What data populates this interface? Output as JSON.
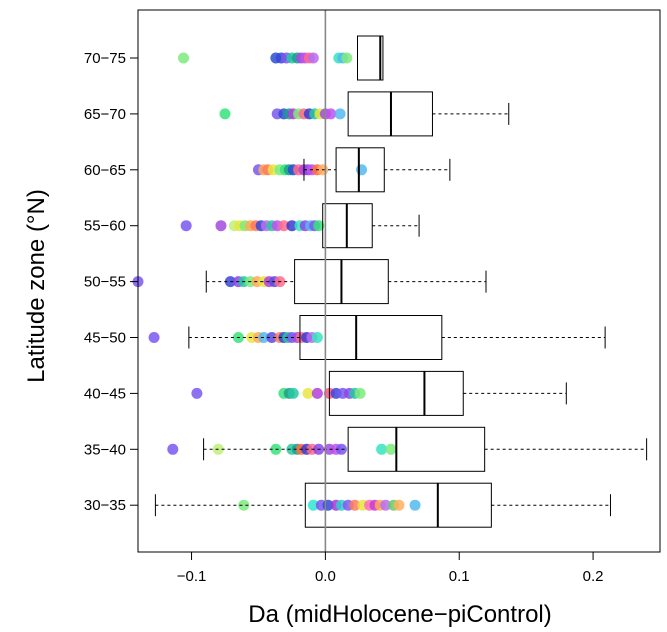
{
  "chart_data": {
    "type": "boxplot",
    "orientation": "horizontal",
    "xlabel": "Da (midHolocene−piControl)",
    "ylabel": "Latitude zone (°N)",
    "xlim": [
      -0.14,
      0.25
    ],
    "xticks": [
      -0.1,
      0.0,
      0.1,
      0.2
    ],
    "xtick_labels": [
      "−0.1",
      "0.0",
      "0.1",
      "0.2"
    ],
    "reference_line_x": 0,
    "categories": [
      "30−35",
      "35−40",
      "40−45",
      "45−50",
      "50−55",
      "55−60",
      "60−65",
      "65−70",
      "70−75"
    ],
    "boxes": [
      {
        "category": "30−35",
        "whisker_low": -0.127,
        "q1": -0.015,
        "median": 0.084,
        "q3": 0.124,
        "whisker_high": 0.213
      },
      {
        "category": "35−40",
        "whisker_low": -0.091,
        "q1": 0.017,
        "median": 0.053,
        "q3": 0.119,
        "whisker_high": 0.24
      },
      {
        "category": "40−45",
        "whisker_low": 0.003,
        "q1": 0.003,
        "median": 0.074,
        "q3": 0.103,
        "whisker_high": 0.18
      },
      {
        "category": "45−50",
        "whisker_low": -0.102,
        "q1": -0.019,
        "median": 0.023,
        "q3": 0.087,
        "whisker_high": 0.209
      },
      {
        "category": "50−55",
        "whisker_low": -0.089,
        "q1": -0.023,
        "median": 0.012,
        "q3": 0.047,
        "whisker_high": 0.12
      },
      {
        "category": "55−60",
        "whisker_low": -0.002,
        "q1": -0.002,
        "median": 0.016,
        "q3": 0.035,
        "whisker_high": 0.07
      },
      {
        "category": "60−65",
        "whisker_low": -0.016,
        "q1": 0.008,
        "median": 0.025,
        "q3": 0.044,
        "whisker_high": 0.093
      },
      {
        "category": "65−70",
        "whisker_low": 0.017,
        "q1": 0.017,
        "median": 0.049,
        "q3": 0.08,
        "whisker_high": 0.137
      },
      {
        "category": "70−75",
        "whisker_low": 0.024,
        "q1": 0.024,
        "median": 0.041,
        "q3": 0.043,
        "whisker_high": 0.043
      }
    ],
    "points": [
      {
        "category": "30−35",
        "x": [
          -0.061,
          -0.009,
          -0.003,
          0.002,
          0.008,
          0.012,
          0.017,
          0.022,
          0.028,
          0.033,
          0.037,
          0.041,
          0.045,
          0.051,
          0.055,
          0.067
        ],
        "colors": [
          "#7CEB7C",
          "#2EE8D0",
          "#7a57f0",
          "#2b4fcf",
          "#a23ad8",
          "#33cccc",
          "#7e5af2",
          "#ff7a5a",
          "#e6e640",
          "#ff6db8",
          "#c83cd0",
          "#ffaa55",
          "#b86cf0",
          "#66cc66",
          "#ffb060",
          "#54b8f0"
        ]
      },
      {
        "category": "35−40",
        "x": [
          -0.114,
          -0.08,
          -0.037,
          -0.025,
          -0.021,
          -0.018,
          -0.014,
          -0.01,
          -0.005,
          0.003,
          0.008,
          0.012,
          0.042,
          0.049
        ],
        "colors": [
          "#7a57f0",
          "#c0f07a",
          "#37e37a",
          "#27c7a0",
          "#1e9e8e",
          "#ff6d3c",
          "#3a3ad0",
          "#ff6b8a",
          "#8a48e8",
          "#a04be0",
          "#c050ef",
          "#7a57f0",
          "#37e3c0",
          "#7CEB7C"
        ]
      },
      {
        "category": "40−45",
        "x": [
          -0.096,
          -0.031,
          -0.027,
          -0.024,
          -0.013,
          -0.006,
          0.003,
          0.008,
          0.013,
          0.018,
          0.022,
          0.026
        ],
        "colors": [
          "#7a57f0",
          "#37e37a",
          "#1e9e8e",
          "#27c7a0",
          "#e6e640",
          "#b23fd8",
          "#ff5580",
          "#3a48d8",
          "#7a57f0",
          "#8a48e8",
          "#27c7a0",
          "#7CEB7C"
        ]
      },
      {
        "category": "45−50",
        "x": [
          -0.128,
          -0.065,
          -0.055,
          -0.05,
          -0.046,
          -0.04,
          -0.034,
          -0.031,
          -0.028,
          -0.025,
          -0.021,
          -0.018,
          -0.014,
          -0.01,
          -0.006
        ],
        "colors": [
          "#7a57f0",
          "#37e37a",
          "#e6e640",
          "#ffaa55",
          "#54b8f0",
          "#5a4ae0",
          "#ff7a5a",
          "#2b4fcf",
          "#27c7a0",
          "#7a57f0",
          "#a04be0",
          "#ff6b8a",
          "#3a3ad0",
          "#b86cf0",
          "#37e3c0"
        ]
      },
      {
        "category": "50−55",
        "x": [
          -0.14,
          -0.071,
          -0.065,
          -0.061,
          -0.056,
          -0.051,
          -0.046,
          -0.042,
          -0.038,
          -0.034
        ],
        "colors": [
          "#7a57f0",
          "#3a48d8",
          "#8a48e8",
          "#27c7a0",
          "#7CEB7C",
          "#ffaa55",
          "#e6e640",
          "#b23fd8",
          "#5a4ae0",
          "#ff6b8a"
        ]
      },
      {
        "category": "55−60",
        "x": [
          -0.104,
          -0.078,
          -0.068,
          -0.064,
          -0.06,
          -0.056,
          -0.052,
          -0.048,
          -0.044,
          -0.04,
          -0.036,
          -0.031,
          -0.025,
          -0.019,
          -0.015,
          -0.011,
          -0.008,
          -0.005
        ],
        "colors": [
          "#7a57f0",
          "#a04be0",
          "#c0f07a",
          "#e6e640",
          "#7CEB7C",
          "#ffaa55",
          "#ff7a5a",
          "#3a48d8",
          "#b86cf0",
          "#27c7a0",
          "#c050ef",
          "#ff6b8a",
          "#3a3ad0",
          "#37e3c0",
          "#8a48e8",
          "#54b8f0",
          "#7a57f0",
          "#37e37a"
        ]
      },
      {
        "category": "60−65",
        "x": [
          -0.05,
          -0.046,
          -0.043,
          -0.039,
          -0.034,
          -0.03,
          -0.027,
          -0.024,
          -0.02,
          -0.016,
          -0.013,
          -0.01,
          -0.006,
          -0.002,
          0.027
        ],
        "colors": [
          "#7a57f0",
          "#ffaa55",
          "#ff7a5a",
          "#e6e640",
          "#7CEB7C",
          "#37e37a",
          "#1e9e8e",
          "#2b4fcf",
          "#ff6b8a",
          "#b23fd8",
          "#8a48e8",
          "#c050ef",
          "#ff6d3c",
          "#ffb060",
          "#54b8f0"
        ]
      },
      {
        "category": "65−70",
        "x": [
          -0.075,
          -0.036,
          -0.031,
          -0.027,
          -0.024,
          -0.02,
          -0.016,
          -0.012,
          -0.008,
          -0.004,
          0.0,
          0.004,
          0.011
        ],
        "colors": [
          "#37e37a",
          "#7a57f0",
          "#2b4fcf",
          "#1e9e8e",
          "#b23fd8",
          "#7CEB7C",
          "#ff6b8a",
          "#3a3ad0",
          "#27c7a0",
          "#e6e640",
          "#a04be0",
          "#c050ef",
          "#54b8f0"
        ]
      },
      {
        "category": "70−75",
        "x": [
          -0.106,
          -0.037,
          -0.033,
          -0.029,
          -0.025,
          -0.021,
          -0.018,
          -0.015,
          -0.012,
          -0.009,
          0.01,
          0.013,
          0.016
        ],
        "colors": [
          "#7CEB7C",
          "#2b4fcf",
          "#3a48d8",
          "#7a57f0",
          "#27c7a0",
          "#1e9e8e",
          "#a04be0",
          "#c050ef",
          "#ff6b8a",
          "#b86cf0",
          "#37e3c0",
          "#54b8f0",
          "#7CEB7C"
        ]
      }
    ]
  }
}
